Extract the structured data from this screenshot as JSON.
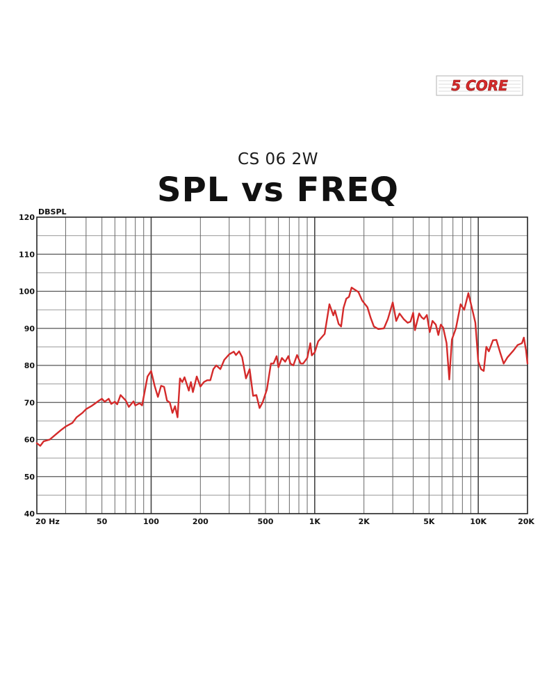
{
  "logo": {
    "text": "5 CORE",
    "accent": "#d62b2b"
  },
  "header": {
    "subtitle": "CS 06 2W",
    "title": "SPL vs FREQ"
  },
  "chart_data": {
    "type": "line",
    "title": "SPL vs FREQ",
    "subtitle": "CS 06 2W",
    "ylabel": "DBSPL",
    "xlabel": "",
    "xscale": "log",
    "xlim": [
      20,
      20000
    ],
    "ylim": [
      40,
      120
    ],
    "grid": true,
    "line_color": "#d42a2a",
    "x_ticks": [
      {
        "value": 20,
        "label": "20 Hz"
      },
      {
        "value": 50,
        "label": "50"
      },
      {
        "value": 100,
        "label": "100"
      },
      {
        "value": 200,
        "label": "200"
      },
      {
        "value": 500,
        "label": "500"
      },
      {
        "value": 1000,
        "label": "1K"
      },
      {
        "value": 2000,
        "label": "2K"
      },
      {
        "value": 5000,
        "label": "5K"
      },
      {
        "value": 10000,
        "label": "10K"
      },
      {
        "value": 20000,
        "label": "20K"
      }
    ],
    "y_ticks": [
      {
        "value": 120,
        "label": "120"
      },
      {
        "value": 110,
        "label": "110"
      },
      {
        "value": 100,
        "label": "100"
      },
      {
        "value": 90,
        "label": "90"
      },
      {
        "value": 80,
        "label": "80"
      },
      {
        "value": 70,
        "label": "70"
      },
      {
        "value": 60,
        "label": "60"
      },
      {
        "value": 50,
        "label": "50"
      },
      {
        "value": 40,
        "label": "40"
      }
    ],
    "series": [
      {
        "points": [
          [
            20,
            59
          ],
          [
            21,
            58.3
          ],
          [
            22,
            59.5
          ],
          [
            24,
            60
          ],
          [
            26,
            61.3
          ],
          [
            28,
            62.5
          ],
          [
            30,
            63.5
          ],
          [
            33,
            64.5
          ],
          [
            35,
            66
          ],
          [
            38,
            67.2
          ],
          [
            40,
            68.2
          ],
          [
            43,
            69
          ],
          [
            45,
            69.6
          ],
          [
            48,
            70.5
          ],
          [
            50,
            71
          ],
          [
            52,
            70.2
          ],
          [
            55,
            71
          ],
          [
            57,
            69.6
          ],
          [
            60,
            70.2
          ],
          [
            62,
            69.5
          ],
          [
            65,
            72
          ],
          [
            70,
            70.5
          ],
          [
            73,
            68.8
          ],
          [
            78,
            70.3
          ],
          [
            80,
            69.2
          ],
          [
            85,
            69.8
          ],
          [
            88,
            69.2
          ],
          [
            95,
            77
          ],
          [
            100,
            78.5
          ],
          [
            105,
            74.5
          ],
          [
            110,
            71.5
          ],
          [
            115,
            74.5
          ],
          [
            120,
            74.2
          ],
          [
            125,
            70.5
          ],
          [
            130,
            70
          ],
          [
            135,
            67.2
          ],
          [
            140,
            69
          ],
          [
            145,
            66
          ],
          [
            150,
            76.5
          ],
          [
            155,
            75.5
          ],
          [
            160,
            76.8
          ],
          [
            170,
            73.2
          ],
          [
            175,
            75.5
          ],
          [
            180,
            72.8
          ],
          [
            190,
            77
          ],
          [
            200,
            74.3
          ],
          [
            210,
            75.5
          ],
          [
            220,
            76
          ],
          [
            230,
            76
          ],
          [
            240,
            79
          ],
          [
            250,
            80
          ],
          [
            265,
            79
          ],
          [
            280,
            81.5
          ],
          [
            300,
            83
          ],
          [
            320,
            83.7
          ],
          [
            330,
            82.8
          ],
          [
            345,
            83.8
          ],
          [
            360,
            82.2
          ],
          [
            380,
            76.5
          ],
          [
            400,
            79
          ],
          [
            420,
            71.8
          ],
          [
            440,
            72
          ],
          [
            460,
            68.5
          ],
          [
            480,
            70
          ],
          [
            510,
            73.5
          ],
          [
            540,
            80.5
          ],
          [
            560,
            80.5
          ],
          [
            585,
            82.5
          ],
          [
            600,
            79.5
          ],
          [
            630,
            82
          ],
          [
            660,
            81
          ],
          [
            690,
            82.5
          ],
          [
            710,
            80.5
          ],
          [
            740,
            80
          ],
          [
            780,
            82.8
          ],
          [
            820,
            80.5
          ],
          [
            850,
            80.5
          ],
          [
            900,
            82
          ],
          [
            940,
            86
          ],
          [
            960,
            82.7
          ],
          [
            1000,
            83.5
          ],
          [
            1050,
            86.5
          ],
          [
            1150,
            88.5
          ],
          [
            1230,
            96.5
          ],
          [
            1300,
            93.5
          ],
          [
            1330,
            94.8
          ],
          [
            1400,
            91.2
          ],
          [
            1450,
            90.5
          ],
          [
            1500,
            95.5
          ],
          [
            1560,
            98
          ],
          [
            1620,
            98.5
          ],
          [
            1680,
            101
          ],
          [
            1750,
            100.5
          ],
          [
            1850,
            99.8
          ],
          [
            1950,
            97.5
          ],
          [
            2100,
            95.7
          ],
          [
            2200,
            92.8
          ],
          [
            2300,
            90.5
          ],
          [
            2450,
            89.8
          ],
          [
            2650,
            90
          ],
          [
            2800,
            92.5
          ],
          [
            3000,
            97
          ],
          [
            3150,
            92
          ],
          [
            3300,
            94
          ],
          [
            3500,
            92.5
          ],
          [
            3700,
            91.5
          ],
          [
            3850,
            91.8
          ],
          [
            4000,
            94.2
          ],
          [
            4100,
            89.5
          ],
          [
            4350,
            94
          ],
          [
            4500,
            93
          ],
          [
            4650,
            92.5
          ],
          [
            4850,
            93.6
          ],
          [
            5050,
            89
          ],
          [
            5250,
            92
          ],
          [
            5500,
            91
          ],
          [
            5700,
            88.2
          ],
          [
            5900,
            91
          ],
          [
            6100,
            90.2
          ],
          [
            6400,
            86
          ],
          [
            6650,
            76.2
          ],
          [
            6900,
            87
          ],
          [
            7300,
            90
          ],
          [
            7800,
            96.5
          ],
          [
            8200,
            95
          ],
          [
            8700,
            99.5
          ],
          [
            9200,
            95
          ],
          [
            9600,
            91.5
          ],
          [
            10000,
            81
          ],
          [
            10400,
            79
          ],
          [
            10800,
            78.5
          ],
          [
            11200,
            85
          ],
          [
            11600,
            83.8
          ],
          [
            12300,
            86.8
          ],
          [
            12900,
            86.9
          ],
          [
            13600,
            83.5
          ],
          [
            14300,
            80.5
          ],
          [
            15100,
            82.2
          ],
          [
            16400,
            84
          ],
          [
            17400,
            85.5
          ],
          [
            18500,
            86
          ],
          [
            19000,
            87.5
          ],
          [
            19600,
            84
          ],
          [
            20000,
            80.5
          ]
        ]
      }
    ]
  }
}
